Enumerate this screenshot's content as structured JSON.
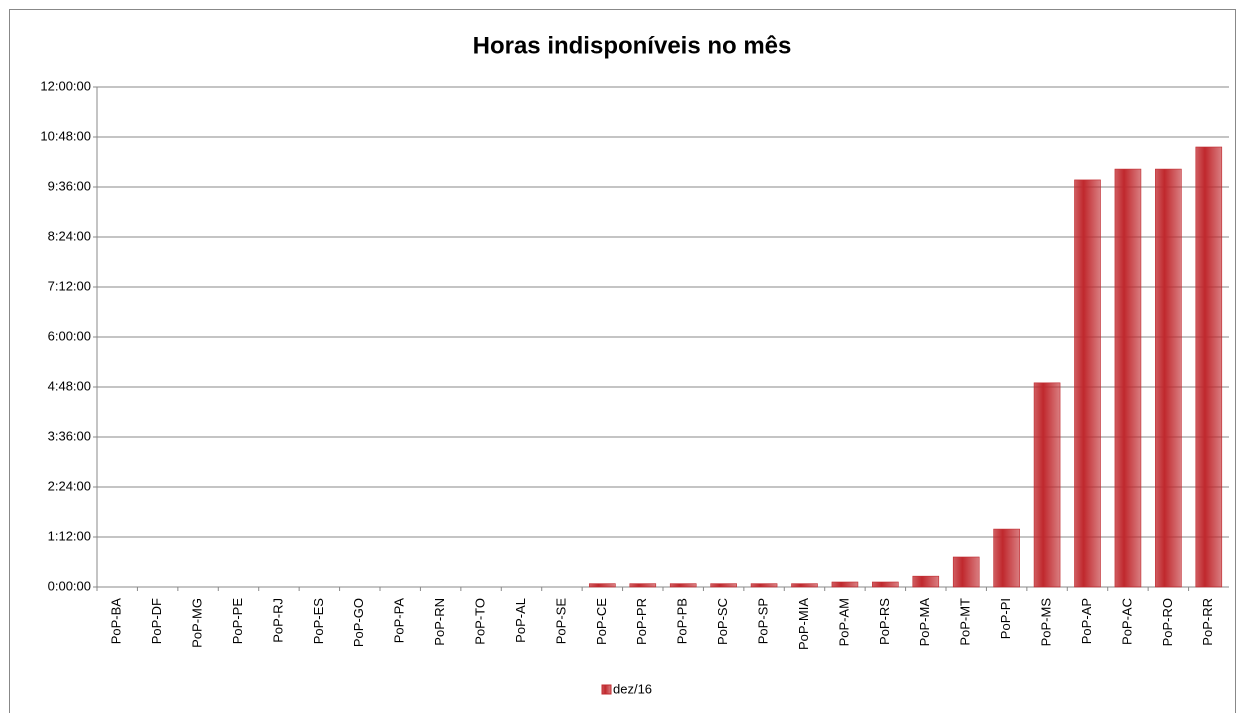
{
  "chart_data": {
    "type": "bar",
    "title": "Horas indisponíveis no mês",
    "categories": [
      "PoP-BA",
      "PoP-DF",
      "PoP-MG",
      "PoP-PE",
      "PoP-RJ",
      "PoP-ES",
      "PoP-GO",
      "PoP-PA",
      "PoP-RN",
      "PoP-TO",
      "PoP-AL",
      "PoP-SE",
      "PoP-CE",
      "PoP-PR",
      "PoP-PB",
      "PoP-SC",
      "PoP-SP",
      "PoP-MIA",
      "PoP-AM",
      "PoP-RS",
      "PoP-MA",
      "PoP-MT",
      "PoP-PI",
      "PoP-MS",
      "PoP-AP",
      "PoP-AC",
      "PoP-RO",
      "PoP-RR"
    ],
    "series": [
      {
        "name": "dez/16",
        "color": "#c0282d",
        "values": [
          0,
          0,
          0,
          0,
          0,
          0,
          0,
          0,
          0,
          0,
          0,
          0,
          0.08,
          0.08,
          0.08,
          0.08,
          0.08,
          0.08,
          0.12,
          0.12,
          0.26,
          0.72,
          1.39,
          4.9,
          9.77,
          10.03,
          10.03,
          10.56
        ]
      }
    ],
    "ylim": [
      0,
      12
    ],
    "yticks": [
      {
        "value": 0,
        "label": "0:00:00"
      },
      {
        "value": 1.2,
        "label": "1:12:00"
      },
      {
        "value": 2.4,
        "label": "2:24:00"
      },
      {
        "value": 3.6,
        "label": "3:36:00"
      },
      {
        "value": 4.8,
        "label": "4:48:00"
      },
      {
        "value": 6,
        "label": "6:00:00"
      },
      {
        "value": 7.2,
        "label": "7:12:00"
      },
      {
        "value": 8.4,
        "label": "8:24:00"
      },
      {
        "value": 9.6,
        "label": "9:36:00"
      },
      {
        "value": 10.8,
        "label": "10:48:00"
      },
      {
        "value": 12,
        "label": "12:00:00"
      }
    ],
    "grid": true
  }
}
